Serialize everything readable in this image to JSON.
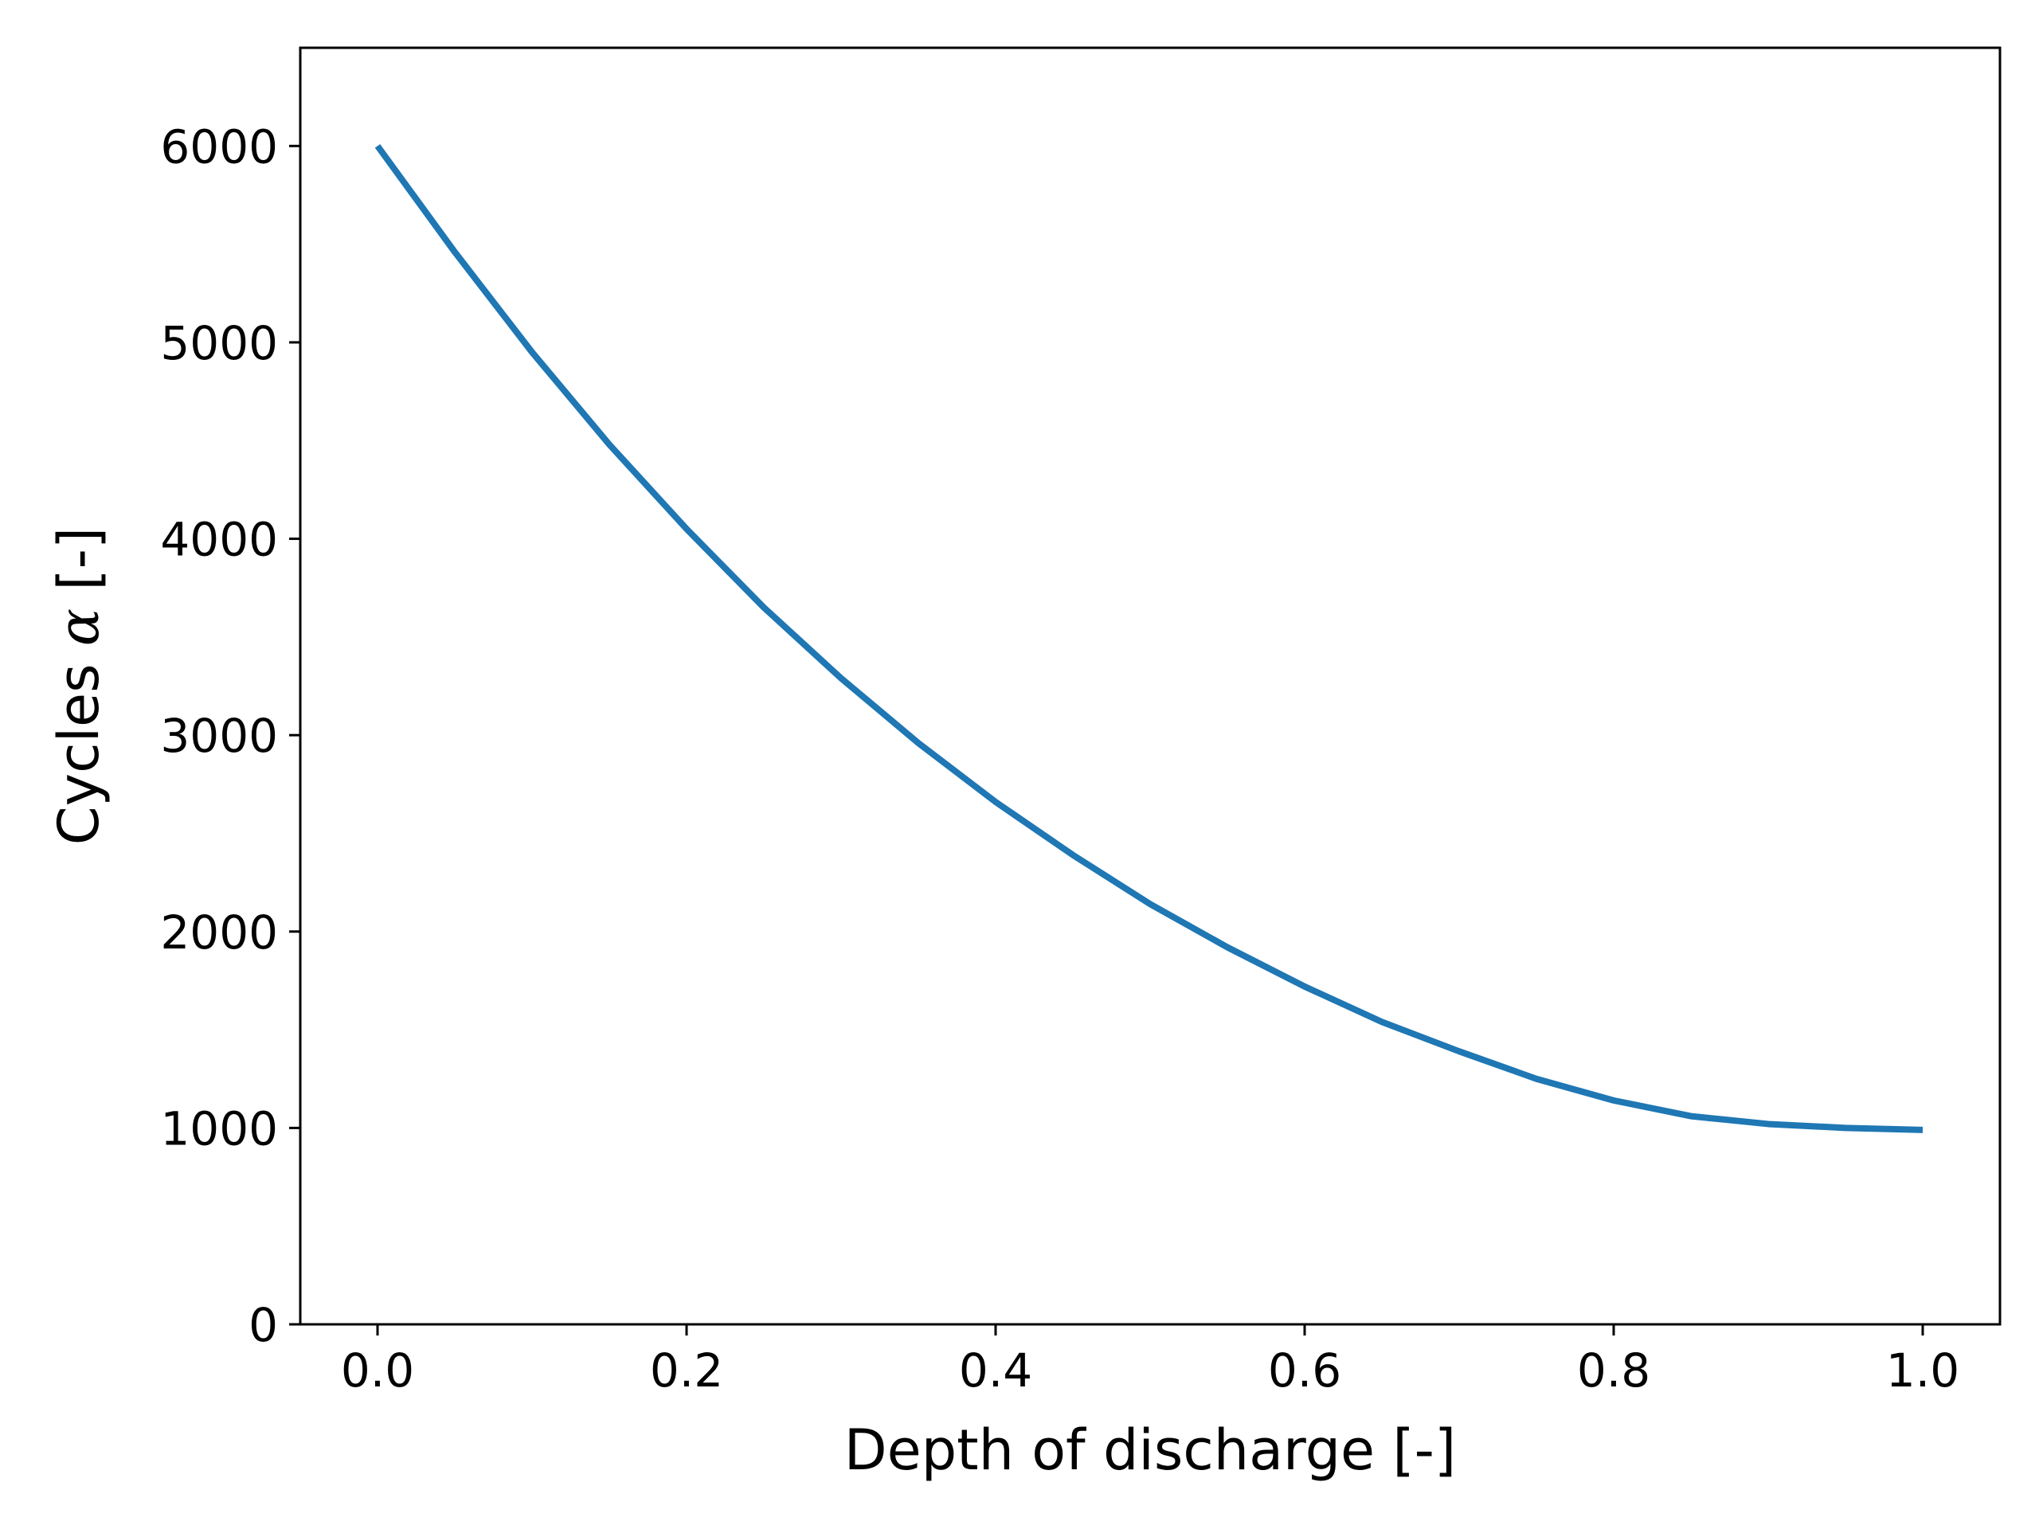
{
  "chart_data": {
    "type": "line",
    "title": "",
    "xlabel": "Depth of discharge [-]",
    "ylabel": {
      "prefix": "Cycles ",
      "symbol": "α",
      "suffix": " [-]"
    },
    "xlim": [
      -0.05,
      1.05
    ],
    "ylim": [
      0,
      6500
    ],
    "xticks": [
      0.0,
      0.2,
      0.4,
      0.6,
      0.8,
      1.0
    ],
    "xtick_labels": [
      "0.0",
      "0.2",
      "0.4",
      "0.6",
      "0.8",
      "1.0"
    ],
    "yticks": [
      0,
      1000,
      2000,
      3000,
      4000,
      5000,
      6000
    ],
    "ytick_labels": [
      "0",
      "1000",
      "2000",
      "3000",
      "4000",
      "5000",
      "6000"
    ],
    "grid": false,
    "legend": "none",
    "series": [
      {
        "color": "#1f77b4",
        "x": [
          0.0,
          0.05,
          0.1,
          0.15,
          0.2,
          0.25,
          0.3,
          0.35,
          0.4,
          0.45,
          0.5,
          0.55,
          0.6,
          0.65,
          0.7,
          0.75,
          0.8,
          0.85,
          0.9,
          0.95,
          1.0
        ],
        "y": [
          6000,
          5460,
          4950,
          4480,
          4050,
          3650,
          3290,
          2960,
          2660,
          2390,
          2140,
          1920,
          1720,
          1540,
          1390,
          1250,
          1140,
          1060,
          1020,
          1000,
          990
        ]
      }
    ]
  }
}
